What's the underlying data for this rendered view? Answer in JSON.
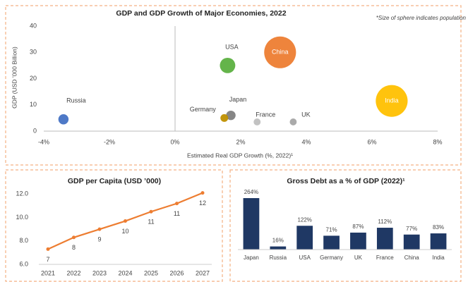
{
  "chart_data": [
    {
      "type": "scatter",
      "title": "GDP and GDP Growth of Major Economies, 2022",
      "note": "*Size of sphere indicates population",
      "x_label": "Estimated Real GDP Growth (%, 2022)¹",
      "y_label": "GDP (USD ’000 Billion)",
      "categories": [
        "Russia",
        "USA",
        "China",
        "India",
        "Japan",
        "Germany",
        "France",
        "UK"
      ],
      "x": [
        -3.4,
        1.6,
        3.2,
        6.6,
        1.7,
        1.5,
        2.5,
        3.6
      ],
      "values": [
        4.5,
        25,
        30,
        11.5,
        6,
        5,
        3.5,
        3.5
      ],
      "sizes": [
        145,
        332,
        1412,
        1417,
        125,
        84,
        68,
        67
      ],
      "colors": [
        "#4472c4",
        "#5cb040",
        "#ed7d31",
        "#ffc000",
        "#7f7f7f",
        "#bf9000",
        "#bfbfbf",
        "#a5a5a5"
      ],
      "xlim": [
        -4,
        8
      ],
      "xticks": [
        {
          "value": -4,
          "label": "-4%"
        },
        {
          "value": -2,
          "label": "-2%"
        },
        {
          "value": 0,
          "label": "0%"
        },
        {
          "value": 2,
          "label": "2%"
        },
        {
          "value": 4,
          "label": "4%"
        },
        {
          "value": 6,
          "label": "6%"
        },
        {
          "value": 8,
          "label": "8%"
        }
      ],
      "ylim": [
        0,
        40
      ],
      "yticks": [
        0,
        10,
        20,
        30,
        40
      ]
    },
    {
      "type": "line",
      "title": "GDP per Capita (USD ’000)",
      "color": "#ed7d31",
      "categories": [
        "2021",
        "2022",
        "2023",
        "2024",
        "2025",
        "2026",
        "2027"
      ],
      "values": [
        7.3,
        8.3,
        9.0,
        9.7,
        10.5,
        11.2,
        12.1
      ],
      "value_labels": [
        "7",
        "8",
        "9",
        "10",
        "11",
        "11",
        "12"
      ],
      "ylim": [
        6,
        12.2
      ],
      "yticks": [
        {
          "value": 6,
          "label": "6.0"
        },
        {
          "value": 8,
          "label": "8.0"
        },
        {
          "value": 10,
          "label": "10.0"
        },
        {
          "value": 12,
          "label": "12.0"
        }
      ]
    },
    {
      "type": "bar",
      "title": "Gross Debt as a % of GDP (2022)¹",
      "color": "#1f3864",
      "categories": [
        "Japan",
        "Russia",
        "USA",
        "Germany",
        "UK",
        "France",
        "China",
        "India"
      ],
      "values": [
        264,
        16,
        122,
        71,
        87,
        112,
        77,
        83
      ],
      "value_labels": [
        "264%",
        "16%",
        "122%",
        "71%",
        "87%",
        "112%",
        "77%",
        "83%"
      ]
    }
  ]
}
